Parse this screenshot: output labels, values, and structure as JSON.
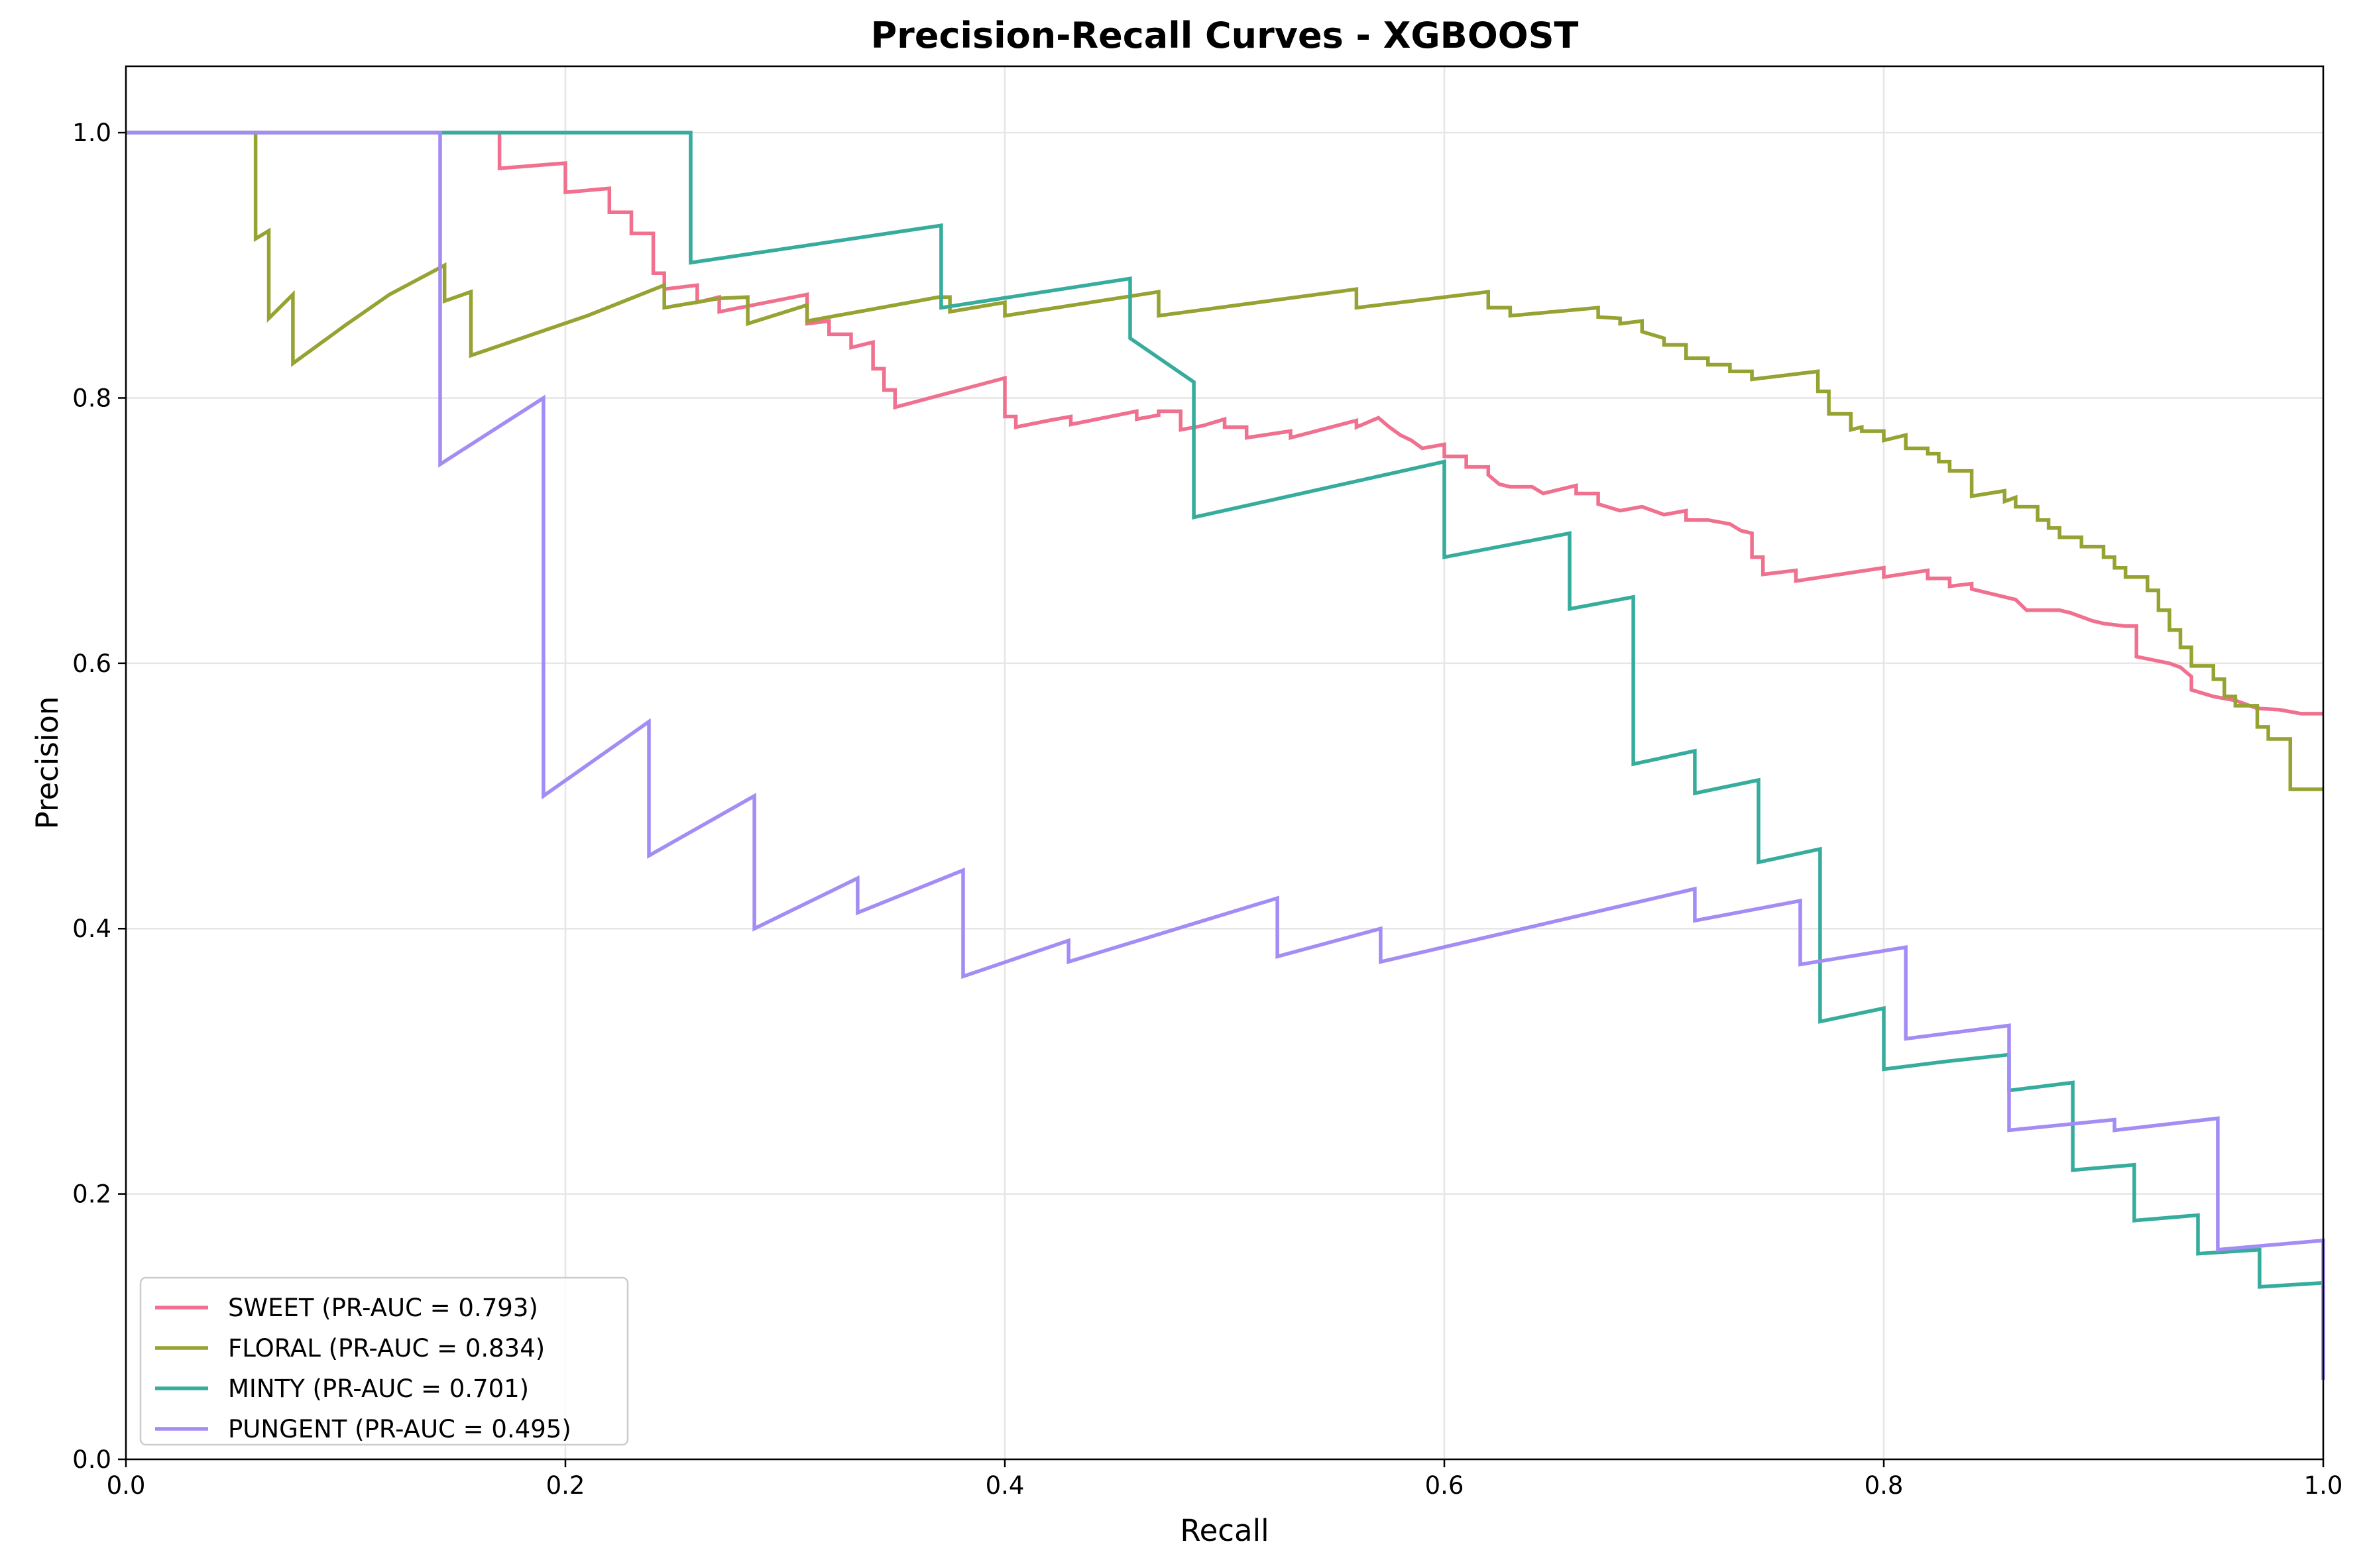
{
  "chart_data": {
    "type": "line",
    "title": "Precision-Recall Curves - XGBOOST",
    "xlabel": "Recall",
    "ylabel": "Precision",
    "xlim": [
      0.0,
      1.0
    ],
    "ylim": [
      0.0,
      1.05
    ],
    "xticks": [
      "0.0",
      "0.2",
      "0.4",
      "0.6",
      "0.8",
      "1.0"
    ],
    "yticks": [
      "0.0",
      "0.2",
      "0.4",
      "0.6",
      "0.8",
      "1.0"
    ],
    "grid": true,
    "legend_position": "lower-left",
    "series": [
      {
        "name": "SWEET",
        "label": "SWEET (PR-AUC = 0.793)",
        "pr_auc": 0.793,
        "color": "#f0708f",
        "points": [
          [
            0,
            1.0
          ],
          [
            0.17,
            1.0
          ],
          [
            0.17,
            0.973
          ],
          [
            0.2,
            0.977
          ],
          [
            0.2,
            0.955
          ],
          [
            0.22,
            0.958
          ],
          [
            0.22,
            0.94
          ],
          [
            0.23,
            0.94
          ],
          [
            0.23,
            0.924
          ],
          [
            0.24,
            0.924
          ],
          [
            0.24,
            0.894
          ],
          [
            0.245,
            0.894
          ],
          [
            0.245,
            0.882
          ],
          [
            0.26,
            0.885
          ],
          [
            0.26,
            0.872
          ],
          [
            0.27,
            0.876
          ],
          [
            0.27,
            0.865
          ],
          [
            0.31,
            0.878
          ],
          [
            0.31,
            0.856
          ],
          [
            0.32,
            0.858
          ],
          [
            0.32,
            0.848
          ],
          [
            0.33,
            0.848
          ],
          [
            0.33,
            0.838
          ],
          [
            0.34,
            0.842
          ],
          [
            0.34,
            0.822
          ],
          [
            0.345,
            0.822
          ],
          [
            0.345,
            0.806
          ],
          [
            0.35,
            0.806
          ],
          [
            0.35,
            0.793
          ],
          [
            0.4,
            0.815
          ],
          [
            0.4,
            0.786
          ],
          [
            0.405,
            0.786
          ],
          [
            0.405,
            0.778
          ],
          [
            0.42,
            0.783
          ],
          [
            0.43,
            0.786
          ],
          [
            0.43,
            0.78
          ],
          [
            0.46,
            0.79
          ],
          [
            0.46,
            0.784
          ],
          [
            0.47,
            0.787
          ],
          [
            0.47,
            0.79
          ],
          [
            0.48,
            0.79
          ],
          [
            0.48,
            0.776
          ],
          [
            0.49,
            0.779
          ],
          [
            0.5,
            0.784
          ],
          [
            0.5,
            0.778
          ],
          [
            0.51,
            0.778
          ],
          [
            0.51,
            0.77
          ],
          [
            0.53,
            0.775
          ],
          [
            0.53,
            0.77
          ],
          [
            0.56,
            0.783
          ],
          [
            0.56,
            0.778
          ],
          [
            0.57,
            0.785
          ],
          [
            0.575,
            0.778
          ],
          [
            0.58,
            0.772
          ],
          [
            0.585,
            0.768
          ],
          [
            0.59,
            0.762
          ],
          [
            0.6,
            0.765
          ],
          [
            0.6,
            0.756
          ],
          [
            0.61,
            0.756
          ],
          [
            0.61,
            0.748
          ],
          [
            0.62,
            0.748
          ],
          [
            0.62,
            0.742
          ],
          [
            0.625,
            0.735
          ],
          [
            0.63,
            0.733
          ],
          [
            0.64,
            0.733
          ],
          [
            0.645,
            0.728
          ],
          [
            0.66,
            0.734
          ],
          [
            0.66,
            0.728
          ],
          [
            0.67,
            0.728
          ],
          [
            0.67,
            0.72
          ],
          [
            0.68,
            0.715
          ],
          [
            0.69,
            0.718
          ],
          [
            0.7,
            0.712
          ],
          [
            0.71,
            0.715
          ],
          [
            0.71,
            0.708
          ],
          [
            0.72,
            0.708
          ],
          [
            0.73,
            0.705
          ],
          [
            0.735,
            0.7
          ],
          [
            0.74,
            0.698
          ],
          [
            0.74,
            0.68
          ],
          [
            0.745,
            0.68
          ],
          [
            0.745,
            0.667
          ],
          [
            0.76,
            0.67
          ],
          [
            0.76,
            0.662
          ],
          [
            0.8,
            0.672
          ],
          [
            0.8,
            0.665
          ],
          [
            0.82,
            0.67
          ],
          [
            0.82,
            0.664
          ],
          [
            0.83,
            0.664
          ],
          [
            0.83,
            0.658
          ],
          [
            0.84,
            0.66
          ],
          [
            0.84,
            0.656
          ],
          [
            0.85,
            0.652
          ],
          [
            0.86,
            0.648
          ],
          [
            0.865,
            0.64
          ],
          [
            0.88,
            0.64
          ],
          [
            0.885,
            0.638
          ],
          [
            0.895,
            0.632
          ],
          [
            0.9,
            0.63
          ],
          [
            0.91,
            0.628
          ],
          [
            0.915,
            0.628
          ],
          [
            0.915,
            0.605
          ],
          [
            0.93,
            0.6
          ],
          [
            0.935,
            0.597
          ],
          [
            0.94,
            0.59
          ],
          [
            0.94,
            0.58
          ],
          [
            0.95,
            0.575
          ],
          [
            0.96,
            0.572
          ],
          [
            0.97,
            0.566
          ],
          [
            0.98,
            0.565
          ],
          [
            0.99,
            0.562
          ],
          [
            1.0,
            0.562
          ]
        ]
      },
      {
        "name": "FLORAL",
        "label": "FLORAL (PR-AUC = 0.834)",
        "pr_auc": 0.834,
        "color": "#96a232",
        "points": [
          [
            0,
            1.0
          ],
          [
            0.059,
            1.0
          ],
          [
            0.059,
            0.92
          ],
          [
            0.065,
            0.926
          ],
          [
            0.065,
            0.86
          ],
          [
            0.076,
            0.878
          ],
          [
            0.076,
            0.826
          ],
          [
            0.1,
            0.855
          ],
          [
            0.12,
            0.878
          ],
          [
            0.145,
            0.9
          ],
          [
            0.145,
            0.873
          ],
          [
            0.157,
            0.88
          ],
          [
            0.157,
            0.832
          ],
          [
            0.18,
            0.845
          ],
          [
            0.21,
            0.862
          ],
          [
            0.245,
            0.885
          ],
          [
            0.245,
            0.868
          ],
          [
            0.27,
            0.875
          ],
          [
            0.283,
            0.876
          ],
          [
            0.283,
            0.856
          ],
          [
            0.31,
            0.87
          ],
          [
            0.31,
            0.858
          ],
          [
            0.37,
            0.876
          ],
          [
            0.375,
            0.876
          ],
          [
            0.375,
            0.865
          ],
          [
            0.4,
            0.872
          ],
          [
            0.4,
            0.862
          ],
          [
            0.47,
            0.88
          ],
          [
            0.47,
            0.862
          ],
          [
            0.56,
            0.882
          ],
          [
            0.56,
            0.868
          ],
          [
            0.62,
            0.88
          ],
          [
            0.62,
            0.868
          ],
          [
            0.63,
            0.868
          ],
          [
            0.63,
            0.862
          ],
          [
            0.67,
            0.868
          ],
          [
            0.67,
            0.861
          ],
          [
            0.68,
            0.86
          ],
          [
            0.68,
            0.856
          ],
          [
            0.69,
            0.858
          ],
          [
            0.69,
            0.85
          ],
          [
            0.7,
            0.845
          ],
          [
            0.7,
            0.84
          ],
          [
            0.71,
            0.84
          ],
          [
            0.71,
            0.83
          ],
          [
            0.72,
            0.83
          ],
          [
            0.72,
            0.825
          ],
          [
            0.73,
            0.825
          ],
          [
            0.73,
            0.82
          ],
          [
            0.74,
            0.82
          ],
          [
            0.74,
            0.814
          ],
          [
            0.77,
            0.82
          ],
          [
            0.77,
            0.805
          ],
          [
            0.775,
            0.805
          ],
          [
            0.775,
            0.788
          ],
          [
            0.785,
            0.788
          ],
          [
            0.785,
            0.776
          ],
          [
            0.79,
            0.778
          ],
          [
            0.79,
            0.775
          ],
          [
            0.8,
            0.775
          ],
          [
            0.8,
            0.768
          ],
          [
            0.81,
            0.772
          ],
          [
            0.81,
            0.762
          ],
          [
            0.82,
            0.762
          ],
          [
            0.82,
            0.758
          ],
          [
            0.825,
            0.758
          ],
          [
            0.825,
            0.752
          ],
          [
            0.83,
            0.752
          ],
          [
            0.83,
            0.745
          ],
          [
            0.84,
            0.745
          ],
          [
            0.84,
            0.726
          ],
          [
            0.855,
            0.73
          ],
          [
            0.855,
            0.722
          ],
          [
            0.86,
            0.725
          ],
          [
            0.86,
            0.718
          ],
          [
            0.87,
            0.718
          ],
          [
            0.87,
            0.708
          ],
          [
            0.875,
            0.708
          ],
          [
            0.875,
            0.702
          ],
          [
            0.88,
            0.702
          ],
          [
            0.88,
            0.695
          ],
          [
            0.89,
            0.695
          ],
          [
            0.89,
            0.688
          ],
          [
            0.9,
            0.688
          ],
          [
            0.9,
            0.68
          ],
          [
            0.905,
            0.68
          ],
          [
            0.905,
            0.672
          ],
          [
            0.91,
            0.672
          ],
          [
            0.91,
            0.665
          ],
          [
            0.92,
            0.665
          ],
          [
            0.92,
            0.655
          ],
          [
            0.925,
            0.655
          ],
          [
            0.925,
            0.64
          ],
          [
            0.93,
            0.64
          ],
          [
            0.93,
            0.625
          ],
          [
            0.935,
            0.625
          ],
          [
            0.935,
            0.612
          ],
          [
            0.94,
            0.612
          ],
          [
            0.94,
            0.598
          ],
          [
            0.95,
            0.598
          ],
          [
            0.95,
            0.588
          ],
          [
            0.955,
            0.588
          ],
          [
            0.955,
            0.575
          ],
          [
            0.96,
            0.575
          ],
          [
            0.96,
            0.568
          ],
          [
            0.97,
            0.568
          ],
          [
            0.97,
            0.552
          ],
          [
            0.975,
            0.552
          ],
          [
            0.975,
            0.543
          ],
          [
            0.985,
            0.543
          ],
          [
            0.985,
            0.505
          ],
          [
            1.0,
            0.505
          ]
        ]
      },
      {
        "name": "MINTY",
        "label": "MINTY (PR-AUC = 0.701)",
        "pr_auc": 0.701,
        "color": "#36ac9c",
        "points": [
          [
            0,
            1.0
          ],
          [
            0.257,
            1.0
          ],
          [
            0.257,
            0.902
          ],
          [
            0.31,
            0.915
          ],
          [
            0.371,
            0.93
          ],
          [
            0.371,
            0.868
          ],
          [
            0.457,
            0.89
          ],
          [
            0.457,
            0.845
          ],
          [
            0.486,
            0.812
          ],
          [
            0.486,
            0.71
          ],
          [
            0.6,
            0.752
          ],
          [
            0.6,
            0.68
          ],
          [
            0.657,
            0.698
          ],
          [
            0.657,
            0.641
          ],
          [
            0.686,
            0.65
          ],
          [
            0.686,
            0.524
          ],
          [
            0.714,
            0.534
          ],
          [
            0.714,
            0.502
          ],
          [
            0.743,
            0.512
          ],
          [
            0.743,
            0.45
          ],
          [
            0.771,
            0.46
          ],
          [
            0.771,
            0.33
          ],
          [
            0.8,
            0.34
          ],
          [
            0.8,
            0.294
          ],
          [
            0.829,
            0.3
          ],
          [
            0.857,
            0.305
          ],
          [
            0.857,
            0.278
          ],
          [
            0.886,
            0.284
          ],
          [
            0.886,
            0.218
          ],
          [
            0.914,
            0.222
          ],
          [
            0.914,
            0.18
          ],
          [
            0.943,
            0.184
          ],
          [
            0.943,
            0.155
          ],
          [
            0.971,
            0.158
          ],
          [
            0.971,
            0.13
          ],
          [
            1.0,
            0.133
          ],
          [
            1.0,
            0.06
          ]
        ]
      },
      {
        "name": "PUNGENT",
        "label": "PUNGENT (PR-AUC = 0.495)",
        "pr_auc": 0.495,
        "color": "#a38cf4",
        "points": [
          [
            0,
            1.0
          ],
          [
            0.143,
            1.0
          ],
          [
            0.143,
            0.75
          ],
          [
            0.19,
            0.8
          ],
          [
            0.19,
            0.5
          ],
          [
            0.238,
            0.556
          ],
          [
            0.238,
            0.455
          ],
          [
            0.286,
            0.5
          ],
          [
            0.286,
            0.4
          ],
          [
            0.333,
            0.438
          ],
          [
            0.333,
            0.412
          ],
          [
            0.381,
            0.444
          ],
          [
            0.381,
            0.364
          ],
          [
            0.429,
            0.391
          ],
          [
            0.429,
            0.375
          ],
          [
            0.524,
            0.423
          ],
          [
            0.524,
            0.379
          ],
          [
            0.571,
            0.4
          ],
          [
            0.571,
            0.375
          ],
          [
            0.714,
            0.43
          ],
          [
            0.714,
            0.406
          ],
          [
            0.762,
            0.421
          ],
          [
            0.762,
            0.373
          ],
          [
            0.81,
            0.386
          ],
          [
            0.81,
            0.317
          ],
          [
            0.857,
            0.327
          ],
          [
            0.857,
            0.248
          ],
          [
            0.905,
            0.256
          ],
          [
            0.905,
            0.248
          ],
          [
            0.952,
            0.257
          ],
          [
            0.952,
            0.158
          ],
          [
            1.0,
            0.165
          ],
          [
            1.0,
            0.06
          ]
        ]
      }
    ]
  }
}
